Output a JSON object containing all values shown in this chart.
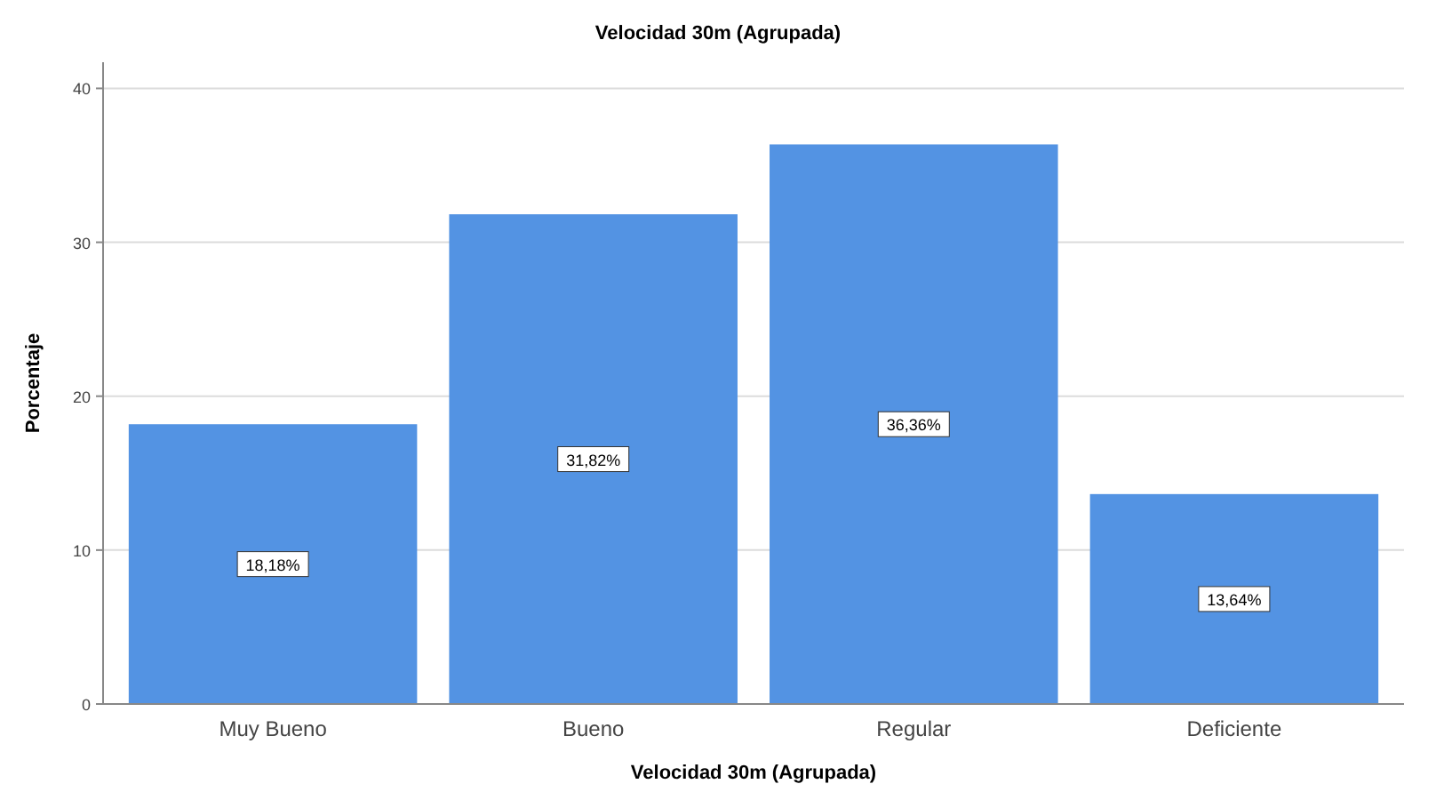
{
  "chart_data": {
    "type": "bar",
    "title": "Velocidad 30m (Agrupada)",
    "xlabel": "Velocidad 30m (Agrupada)",
    "ylabel": "Porcentaje",
    "categories": [
      "Muy Bueno",
      "Bueno",
      "Regular",
      "Deficiente"
    ],
    "values": [
      18.18,
      31.82,
      36.36,
      13.64
    ],
    "value_labels": [
      "18,18%",
      "31,82%",
      "36,36%",
      "13,64%"
    ],
    "color": "#5393e3",
    "ylim": [
      0,
      41.7
    ],
    "yticks": [
      0,
      10,
      20,
      30,
      40
    ],
    "grid": "y"
  }
}
